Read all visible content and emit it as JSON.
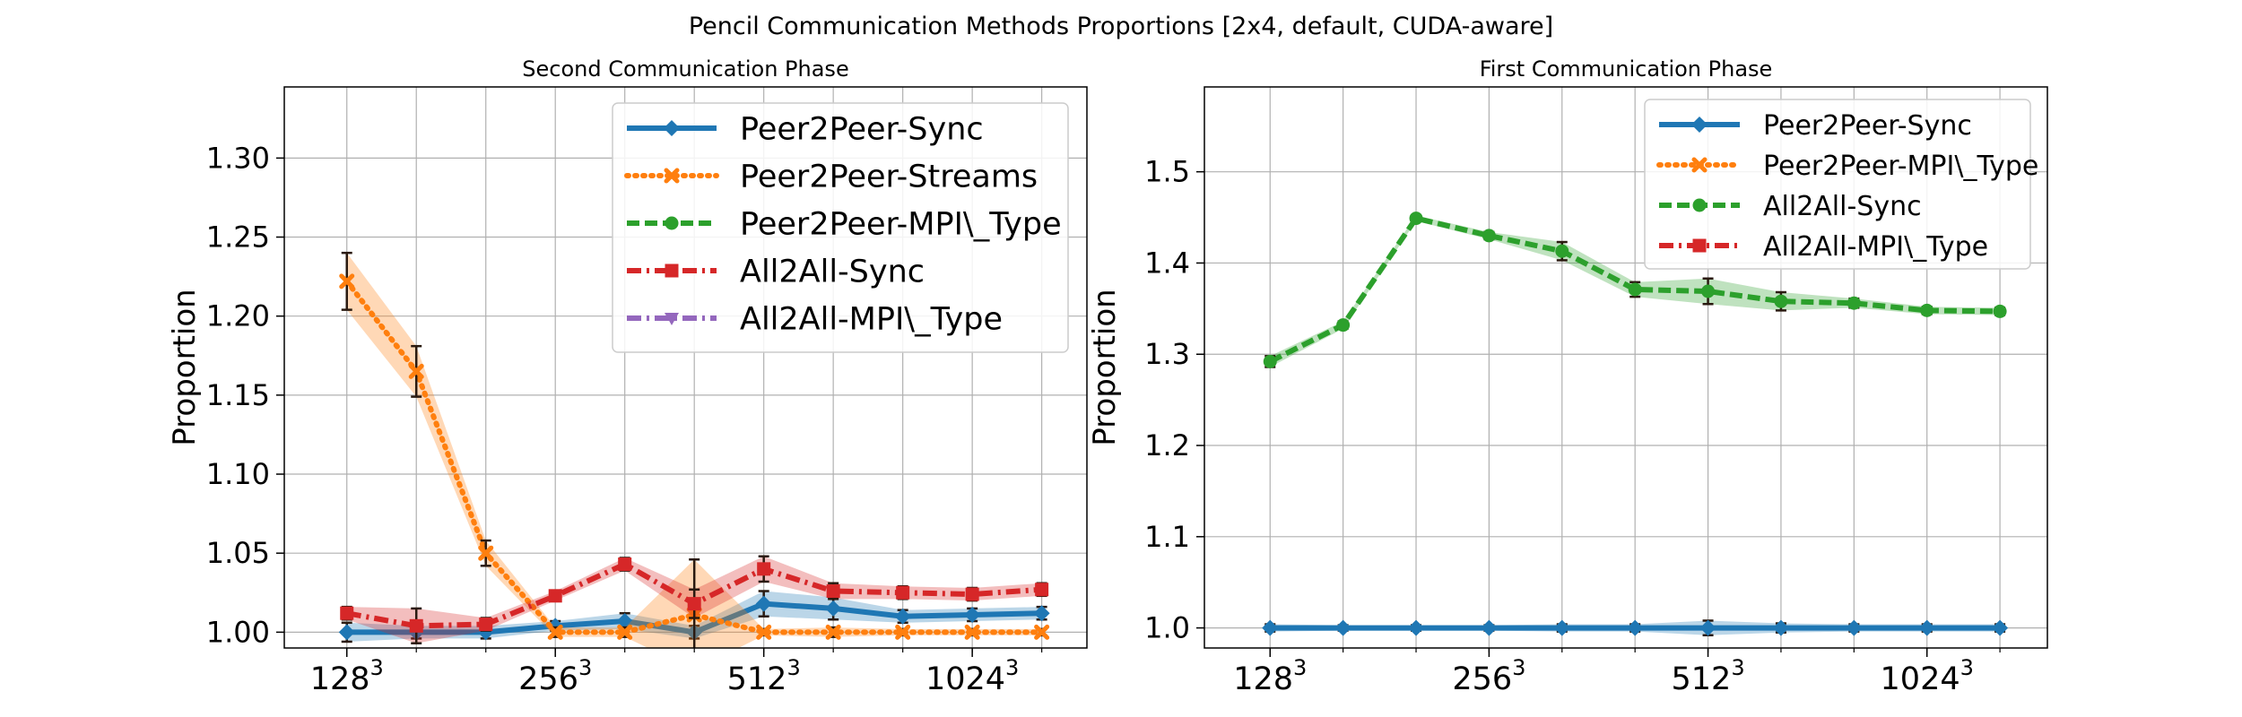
{
  "figure": {
    "title": "Pencil Communication Methods Proportions [2x4, default, CUDA-aware]"
  },
  "colors": {
    "blue": "#1f77b4",
    "orange": "#ff7f0e",
    "green": "#2ca02c",
    "red": "#d62728",
    "purple": "#9467bd",
    "errorbar": "#2a1a10",
    "grid": "#b0b0b0"
  },
  "chart_data": [
    {
      "type": "line",
      "title": "Second Communication Phase",
      "xlabel": "",
      "ylabel": "Proportion",
      "x_log2": [
        7,
        7.3333,
        7.6667,
        8,
        8.3333,
        8.6667,
        9,
        9.3333,
        9.6667,
        10,
        10.3333
      ],
      "xticks": [
        {
          "base": "128",
          "exp": "3"
        },
        {
          "base": "256",
          "exp": "3"
        },
        {
          "base": "512",
          "exp": "3"
        },
        {
          "base": "1024",
          "exp": "3"
        }
      ],
      "xtick_log2": [
        7,
        8,
        9,
        10
      ],
      "xlim_log2": [
        6.7,
        10.55
      ],
      "ylim": [
        0.99,
        1.345
      ],
      "yticks": [
        "1.00",
        "1.05",
        "1.10",
        "1.15",
        "1.20",
        "1.25",
        "1.30"
      ],
      "legend_position": "top-right",
      "series": [
        {
          "name": "Peer2Peer-Sync",
          "color": "#1f77b4",
          "dash": "solid",
          "marker": "diamond",
          "values": [
            1.0,
            1.0,
            1.0,
            1.004,
            1.007,
            1.0,
            1.018,
            1.015,
            1.01,
            1.011,
            1.012
          ],
          "err": [
            0.006,
            0.004,
            0.004,
            0.003,
            0.005,
            0.004,
            0.008,
            0.007,
            0.004,
            0.004,
            0.004
          ]
        },
        {
          "name": "Peer2Peer-Streams",
          "color": "#ff7f0e",
          "dash": "dotted",
          "marker": "x",
          "values": [
            1.222,
            1.165,
            1.05,
            1.0,
            1.0,
            1.011,
            1.0,
            1.0,
            1.0,
            1.0,
            1.0
          ],
          "err": [
            0.018,
            0.016,
            0.008,
            0.003,
            0.003,
            0.035,
            0.002,
            0.003,
            0.002,
            0.002,
            0.002
          ]
        },
        {
          "name": "Peer2Peer-MPI\\_Type",
          "color": "#2ca02c",
          "dash": "dashed",
          "marker": "circle",
          "values": [],
          "err": []
        },
        {
          "name": "All2All-Sync",
          "color": "#d62728",
          "dash": "dashdot",
          "marker": "square",
          "values": [
            1.012,
            1.004,
            1.005,
            1.023,
            1.043,
            1.018,
            1.04,
            1.026,
            1.025,
            1.024,
            1.027
          ],
          "err": [
            0.004,
            0.011,
            0.004,
            0.003,
            0.004,
            0.009,
            0.008,
            0.005,
            0.004,
            0.004,
            0.004
          ]
        },
        {
          "name": "All2All-MPI\\_Type",
          "color": "#9467bd",
          "dash": "dashdot",
          "marker": "triangle-down",
          "values": [],
          "err": []
        }
      ]
    },
    {
      "type": "line",
      "title": "First Communication Phase",
      "xlabel": "",
      "ylabel": "Proportion",
      "x_log2": [
        7,
        7.3333,
        7.6667,
        8,
        8.3333,
        8.6667,
        9,
        9.3333,
        9.6667,
        10,
        10.3333
      ],
      "xticks": [
        {
          "base": "128",
          "exp": "3"
        },
        {
          "base": "256",
          "exp": "3"
        },
        {
          "base": "512",
          "exp": "3"
        },
        {
          "base": "1024",
          "exp": "3"
        }
      ],
      "xtick_log2": [
        7,
        8,
        9,
        10
      ],
      "xlim_log2": [
        6.7,
        10.55
      ],
      "ylim": [
        0.978,
        1.593
      ],
      "yticks": [
        "1.0",
        "1.1",
        "1.2",
        "1.3",
        "1.4",
        "1.5"
      ],
      "legend_position": "top-right",
      "series": [
        {
          "name": "Peer2Peer-Sync",
          "color": "#1f77b4",
          "dash": "solid",
          "marker": "diamond",
          "values": [
            1.0,
            1.0,
            1.0,
            1.0,
            1.0,
            1.0,
            1.0,
            1.0,
            1.0,
            1.0,
            1.0
          ],
          "err": [
            0.004,
            0.003,
            0.003,
            0.003,
            0.004,
            0.004,
            0.008,
            0.005,
            0.004,
            0.004,
            0.004
          ]
        },
        {
          "name": "Peer2Peer-MPI\\_Type",
          "color": "#ff7f0e",
          "dash": "dotted",
          "marker": "x",
          "values": [],
          "err": []
        },
        {
          "name": "All2All-Sync",
          "color": "#2ca02c",
          "dash": "dashed",
          "marker": "circle",
          "values": [
            1.292,
            1.332,
            1.449,
            1.43,
            1.413,
            1.371,
            1.369,
            1.358,
            1.356,
            1.348,
            1.347
          ],
          "err": [
            0.006,
            0.004,
            0.003,
            0.004,
            0.01,
            0.008,
            0.014,
            0.01,
            0.005,
            0.004,
            0.004
          ]
        },
        {
          "name": "All2All-MPI\\_Type",
          "color": "#d62728",
          "dash": "dashdot",
          "marker": "square",
          "values": [],
          "err": []
        }
      ]
    }
  ]
}
